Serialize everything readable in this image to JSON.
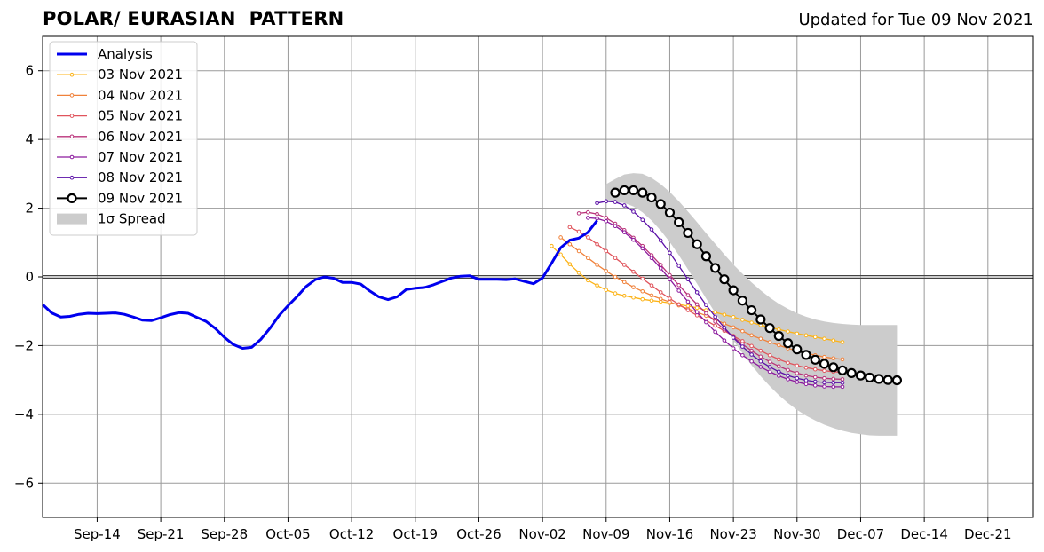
{
  "title_left": "POLAR/ EURASIAN  PATTERN",
  "title_right": "Updated for Tue 09 Nov 2021",
  "chart_data": {
    "type": "line",
    "title": "POLAR/ EURASIAN  PATTERN",
    "subtitle": "Updated for Tue 09 Nov 2021",
    "xlabel": "",
    "ylabel": "",
    "x_axis": {
      "type": "date",
      "range": [
        "2021-09-08",
        "2021-12-26"
      ],
      "tick_dates": [
        "2021-09-14",
        "2021-09-21",
        "2021-09-28",
        "2021-10-05",
        "2021-10-12",
        "2021-10-19",
        "2021-10-26",
        "2021-11-02",
        "2021-11-09",
        "2021-11-16",
        "2021-11-23",
        "2021-11-30",
        "2021-12-07",
        "2021-12-14",
        "2021-12-21"
      ],
      "tick_labels": [
        "Sep-14",
        "Sep-21",
        "Sep-28",
        "Oct-05",
        "Oct-12",
        "Oct-19",
        "Oct-26",
        "Nov-02",
        "Nov-09",
        "Nov-16",
        "Nov-23",
        "Nov-30",
        "Dec-07",
        "Dec-14",
        "Dec-21"
      ]
    },
    "y_axis": {
      "range": [
        -7,
        7
      ],
      "ticks": [
        6,
        4,
        2,
        0,
        -2,
        -4,
        -6
      ],
      "tick_labels": [
        "6",
        "4",
        "2",
        "0",
        "−2",
        "−4",
        "−6"
      ]
    },
    "grid": true,
    "zero_line": true,
    "legend_position": "top-left",
    "legend": [
      "Analysis",
      "03 Nov 2021",
      "04 Nov 2021",
      "05 Nov 2021",
      "06 Nov 2021",
      "07 Nov 2021",
      "08 Nov 2021",
      "09 Nov 2021",
      "1σ Spread"
    ],
    "analysis": {
      "name": "Analysis",
      "color": "#0000ee",
      "start_date": "2021-09-08",
      "values": [
        -0.8,
        -1.05,
        -1.17,
        -1.15,
        -1.09,
        -1.06,
        -1.07,
        -1.06,
        -1.05,
        -1.09,
        -1.17,
        -1.26,
        -1.27,
        -1.19,
        -1.1,
        -1.04,
        -1.06,
        -1.18,
        -1.3,
        -1.5,
        -1.76,
        -1.97,
        -2.08,
        -2.05,
        -1.82,
        -1.5,
        -1.13,
        -0.84,
        -0.57,
        -0.28,
        -0.08,
        0.0,
        -0.04,
        -0.16,
        -0.16,
        -0.21,
        -0.41,
        -0.58,
        -0.66,
        -0.58,
        -0.37,
        -0.33,
        -0.31,
        -0.23,
        -0.13,
        -0.03,
        0.02,
        0.03,
        -0.07,
        -0.07,
        -0.07,
        -0.08,
        -0.06,
        -0.13,
        -0.2,
        -0.03,
        0.4,
        0.85,
        1.07,
        1.13,
        1.3,
        1.64
      ]
    },
    "forecasts": [
      {
        "name": "03 Nov 2021",
        "color": "#fcb317",
        "start_date": "2021-11-03",
        "values": [
          0.9,
          0.65,
          0.37,
          0.12,
          -0.1,
          -0.25,
          -0.38,
          -0.48,
          -0.55,
          -0.6,
          -0.65,
          -0.69,
          -0.72,
          -0.76,
          -0.8,
          -0.85,
          -0.9,
          -0.97,
          -1.03,
          -1.1,
          -1.17,
          -1.25,
          -1.33,
          -1.4,
          -1.47,
          -1.53,
          -1.59,
          -1.65,
          -1.7,
          -1.75,
          -1.8,
          -1.85,
          -1.9
        ]
      },
      {
        "name": "04 Nov 2021",
        "color": "#f0813a",
        "start_date": "2021-11-04",
        "values": [
          1.15,
          0.95,
          0.75,
          0.55,
          0.35,
          0.17,
          0.0,
          -0.15,
          -0.3,
          -0.42,
          -0.54,
          -0.64,
          -0.73,
          -0.83,
          -0.93,
          -1.03,
          -1.13,
          -1.24,
          -1.36,
          -1.47,
          -1.58,
          -1.7,
          -1.8,
          -1.9,
          -1.99,
          -2.08,
          -2.15,
          -2.22,
          -2.28,
          -2.33,
          -2.37,
          -2.4
        ]
      },
      {
        "name": "05 Nov 2021",
        "color": "#e0545c",
        "start_date": "2021-11-05",
        "values": [
          1.45,
          1.32,
          1.15,
          0.95,
          0.75,
          0.55,
          0.35,
          0.15,
          -0.05,
          -0.25,
          -0.45,
          -0.63,
          -0.8,
          -0.97,
          -1.12,
          -1.27,
          -1.42,
          -1.57,
          -1.72,
          -1.87,
          -2.01,
          -2.15,
          -2.28,
          -2.4,
          -2.5,
          -2.58,
          -2.64,
          -2.69,
          -2.73,
          -2.76,
          -2.78
        ]
      },
      {
        "name": "06 Nov 2021",
        "color": "#b9327a",
        "start_date": "2021-11-06",
        "values": [
          1.85,
          1.88,
          1.83,
          1.72,
          1.55,
          1.36,
          1.14,
          0.9,
          0.63,
          0.35,
          0.05,
          -0.24,
          -0.53,
          -0.8,
          -1.06,
          -1.3,
          -1.53,
          -1.75,
          -1.96,
          -2.15,
          -2.32,
          -2.47,
          -2.6,
          -2.71,
          -2.8,
          -2.87,
          -2.92,
          -2.95,
          -2.97,
          -2.98
        ]
      },
      {
        "name": "07 Nov 2021",
        "color": "#8c1a9e",
        "start_date": "2021-11-07",
        "values": [
          1.72,
          1.7,
          1.62,
          1.48,
          1.3,
          1.08,
          0.83,
          0.55,
          0.25,
          -0.07,
          -0.4,
          -0.72,
          -1.03,
          -1.32,
          -1.6,
          -1.85,
          -2.08,
          -2.28,
          -2.46,
          -2.62,
          -2.76,
          -2.88,
          -2.98,
          -3.06,
          -3.12,
          -3.16,
          -3.19,
          -3.2,
          -3.2
        ]
      },
      {
        "name": "08 Nov 2021",
        "color": "#5a0ea6",
        "start_date": "2021-11-08",
        "values": [
          2.15,
          2.2,
          2.18,
          2.08,
          1.9,
          1.66,
          1.38,
          1.06,
          0.7,
          0.32,
          -0.07,
          -0.45,
          -0.82,
          -1.16,
          -1.48,
          -1.77,
          -2.03,
          -2.26,
          -2.46,
          -2.62,
          -2.76,
          -2.87,
          -2.95,
          -3.01,
          -3.05,
          -3.07,
          -3.08,
          -3.08
        ]
      },
      {
        "name": "09 Nov 2021",
        "color": "#000000",
        "start_date": "2021-11-10",
        "values": [
          2.45,
          2.52,
          2.52,
          2.45,
          2.31,
          2.12,
          1.87,
          1.59,
          1.28,
          0.95,
          0.6,
          0.26,
          -0.07,
          -0.39,
          -0.69,
          -0.97,
          -1.24,
          -1.49,
          -1.72,
          -1.93,
          -2.11,
          -2.27,
          -2.41,
          -2.53,
          -2.63,
          -2.72,
          -2.8,
          -2.87,
          -2.93,
          -2.97,
          -3.0,
          -3.01
        ]
      }
    ],
    "spread": {
      "name": "1σ Spread",
      "color": "#cccccc",
      "start_date": "2021-11-09",
      "upper": [
        2.7,
        2.85,
        2.98,
        3.02,
        3.0,
        2.88,
        2.7,
        2.47,
        2.2,
        1.9,
        1.59,
        1.27,
        0.96,
        0.65,
        0.36,
        0.09,
        -0.16,
        -0.39,
        -0.6,
        -0.78,
        -0.93,
        -1.06,
        -1.16,
        -1.24,
        -1.3,
        -1.34,
        -1.37,
        -1.39,
        -1.4,
        -1.4,
        -1.4,
        -1.4,
        -1.4
      ],
      "lower": [
        2.2,
        2.18,
        2.15,
        2.05,
        1.88,
        1.64,
        1.35,
        1.01,
        0.63,
        0.22,
        -0.2,
        -0.63,
        -1.05,
        -1.46,
        -1.85,
        -2.22,
        -2.57,
        -2.89,
        -3.18,
        -3.44,
        -3.67,
        -3.87,
        -4.04,
        -4.18,
        -4.3,
        -4.4,
        -4.48,
        -4.54,
        -4.58,
        -4.61,
        -4.62,
        -4.62,
        -4.62
      ]
    }
  }
}
